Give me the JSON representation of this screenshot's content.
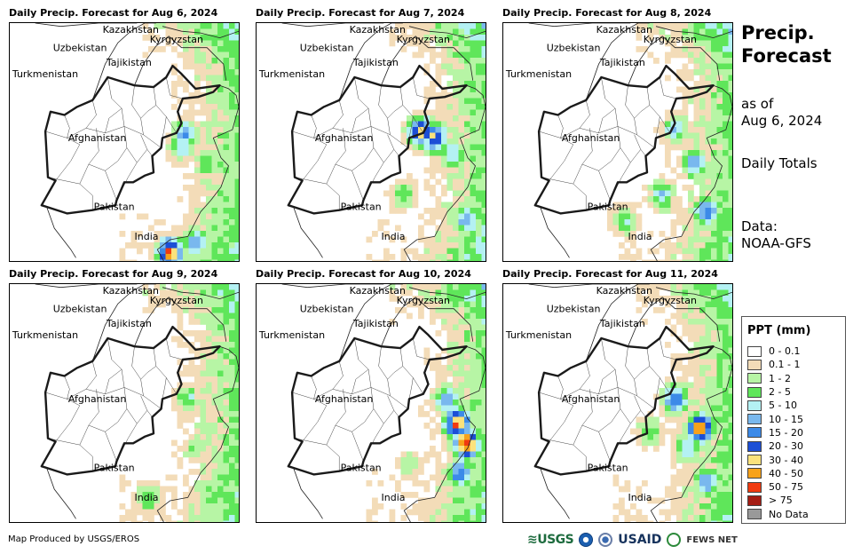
{
  "side": {
    "title_line1": "Precip.",
    "title_line2": "Forecast",
    "as_of_line1": "as of",
    "as_of_line2": "Aug 6, 2024",
    "daily_totals": "Daily Totals",
    "data_line1": "Data:",
    "data_line2": "NOAA-GFS"
  },
  "panels": [
    {
      "title": "Daily Precip. Forecast for Aug 6, 2024",
      "hotspots": [
        {
          "lon": 71.8,
          "lat": 34.2,
          "level": 6
        },
        {
          "lon": 71.5,
          "lat": 33.5,
          "level": 5
        },
        {
          "lon": 73.5,
          "lat": 32.5,
          "level": 4
        },
        {
          "lon": 70.6,
          "lat": 27.0,
          "level": 10
        },
        {
          "lon": 72.6,
          "lat": 27.6,
          "level": 6
        }
      ]
    },
    {
      "title": "Daily Precip. Forecast for Aug 7, 2024",
      "hotspots": [
        {
          "lon": 70.9,
          "lat": 34.4,
          "level": 9
        },
        {
          "lon": 72.0,
          "lat": 34.0,
          "level": 8
        },
        {
          "lon": 73.5,
          "lat": 33.0,
          "level": 5
        },
        {
          "lon": 69.5,
          "lat": 30.5,
          "level": 4
        },
        {
          "lon": 74.5,
          "lat": 29.0,
          "level": 6
        }
      ]
    },
    {
      "title": "Daily Precip. Forecast for Aug 8, 2024",
      "hotspots": [
        {
          "lon": 71.5,
          "lat": 34.5,
          "level": 5
        },
        {
          "lon": 73.0,
          "lat": 32.5,
          "level": 6
        },
        {
          "lon": 70.5,
          "lat": 30.5,
          "level": 5
        },
        {
          "lon": 67.5,
          "lat": 29.0,
          "level": 4
        },
        {
          "lon": 74.0,
          "lat": 29.5,
          "level": 7
        }
      ]
    },
    {
      "title": "Daily Precip. Forecast for Aug 9, 2024",
      "hotspots": [
        {
          "lon": 72.0,
          "lat": 34.0,
          "level": 4
        },
        {
          "lon": 72.5,
          "lat": 31.0,
          "level": 3
        },
        {
          "lon": 69.0,
          "lat": 28.0,
          "level": 4
        },
        {
          "lon": 73.5,
          "lat": 28.5,
          "level": 3
        }
      ]
    },
    {
      "title": "Daily Precip. Forecast for Aug 10, 2024",
      "hotspots": [
        {
          "lon": 73.8,
          "lat": 32.5,
          "level": 10
        },
        {
          "lon": 74.5,
          "lat": 31.3,
          "level": 11
        },
        {
          "lon": 73.0,
          "lat": 34.0,
          "level": 6
        },
        {
          "lon": 74.0,
          "lat": 29.5,
          "level": 7
        },
        {
          "lon": 70.0,
          "lat": 30.0,
          "level": 3
        }
      ]
    },
    {
      "title": "Daily Precip. Forecast for Aug 11, 2024",
      "hotspots": [
        {
          "lon": 71.5,
          "lat": 34.0,
          "level": 7
        },
        {
          "lon": 73.5,
          "lat": 32.2,
          "level": 10
        },
        {
          "lon": 72.5,
          "lat": 31.0,
          "level": 5
        },
        {
          "lon": 74.0,
          "lat": 29.0,
          "level": 6
        },
        {
          "lon": 69.5,
          "lat": 32.0,
          "level": 4
        }
      ]
    }
  ],
  "country_labels": [
    "Kazakhstan",
    "Kyrgyzstan",
    "Uzbekistan",
    "Tajikistan",
    "Turkmenistan",
    "Afghanistan",
    "Pakistan",
    "India"
  ],
  "legend": {
    "title": "PPT (mm)",
    "entries": [
      {
        "label": "0 - 0.1",
        "color": "#ffffff"
      },
      {
        "label": "0.1 - 1",
        "color": "#f3dcb8"
      },
      {
        "label": "1 - 2",
        "color": "#b7f5a5"
      },
      {
        "label": "2 - 5",
        "color": "#5fe65a"
      },
      {
        "label": "5 - 10",
        "color": "#b4f1f3"
      },
      {
        "label": "10 - 15",
        "color": "#79b8ee"
      },
      {
        "label": "15 - 20",
        "color": "#3c8ae8"
      },
      {
        "label": "20 - 30",
        "color": "#1c4fd6"
      },
      {
        "label": "30 - 40",
        "color": "#fbe27c"
      },
      {
        "label": "40 - 50",
        "color": "#f7a21a"
      },
      {
        "label": "50 - 75",
        "color": "#f03a10"
      },
      {
        "label": "> 75",
        "color": "#a51d14"
      },
      {
        "label": "No Data",
        "color": "#999999"
      }
    ]
  },
  "footer": {
    "credit": "Map Produced by USGS/EROS"
  },
  "logos": {
    "usgs": "≋USGS",
    "usaid": "USAID",
    "fews": "FEWS NET"
  }
}
